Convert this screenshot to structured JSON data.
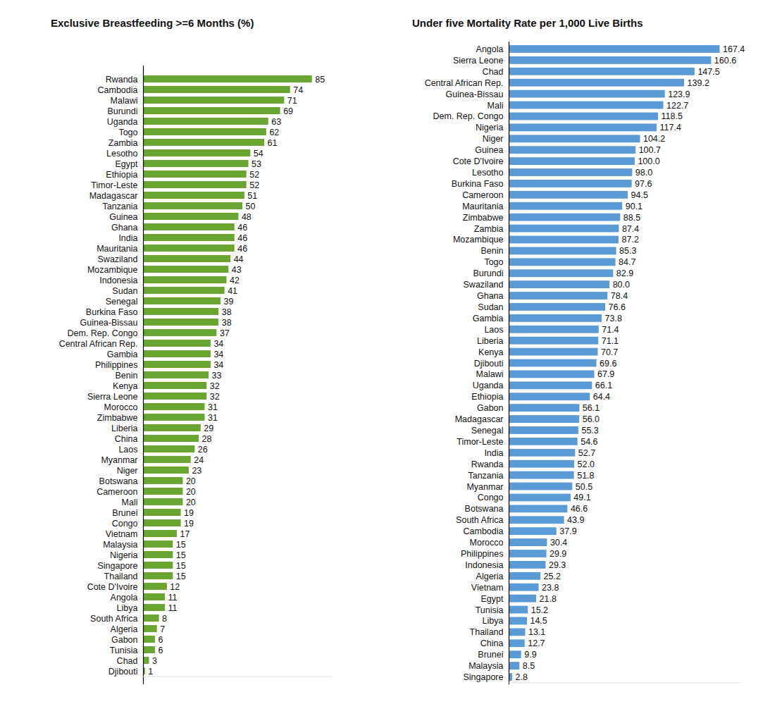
{
  "chart_data": [
    {
      "type": "bar",
      "title": "Exclusive Breastfeeding >=6 Months (%)",
      "orientation": "horizontal",
      "data_labels": true,
      "tick_labels": "y",
      "color": "#6aa531",
      "xlim": [
        0,
        95
      ],
      "categories": [
        "Rwanda",
        "Cambodia",
        "Malawi",
        "Burundi",
        "Uganda",
        "Togo",
        "Zambia",
        "Lesotho",
        "Egypt",
        "Ethiopia",
        "Timor-Leste",
        "Madagascar",
        "Tanzania",
        "Guinea",
        "Ghana",
        "India",
        "Mauritania",
        "Swaziland",
        "Mozambique",
        "Indonesia",
        "Sudan",
        "Senegal",
        "Burkina Faso",
        "Guinea-Bissau",
        "Dem. Rep. Congo",
        "Central African Rep.",
        "Gambia",
        "Philippines",
        "Benin",
        "Kenya",
        "Sierra Leone",
        "Morocco",
        "Zimbabwe",
        "Liberia",
        "China",
        "Laos",
        "Myanmar",
        "Niger",
        "Botswana",
        "Cameroon",
        "Mali",
        "Brunei",
        "Congo",
        "Vietnam",
        "Malaysia",
        "Nigeria",
        "Singapore",
        "Thailand",
        "Cote D'Ivoire",
        "Angola",
        "Libya",
        "South Africa",
        "Algeria",
        "Gabon",
        "Tunisia",
        "Chad",
        "Djibouti"
      ],
      "values": [
        85,
        74,
        71,
        69,
        63,
        62,
        61,
        54,
        53,
        52,
        52,
        51,
        50,
        48,
        46,
        46,
        46,
        44,
        43,
        42,
        41,
        39,
        38,
        38,
        37,
        34,
        34,
        34,
        33,
        32,
        32,
        31,
        31,
        29,
        28,
        26,
        24,
        23,
        20,
        20,
        20,
        19,
        19,
        17,
        15,
        15,
        15,
        15,
        12,
        11,
        11,
        8,
        7,
        6,
        6,
        3,
        1
      ]
    },
    {
      "type": "bar",
      "title": "Under five Mortality Rate per 1,000 Live Births",
      "orientation": "horizontal",
      "data_labels": true,
      "tick_labels": "y",
      "color": "#5b9bd5",
      "xlim": [
        0,
        185
      ],
      "categories": [
        "Angola",
        "Sierra Leone",
        "Chad",
        "Central African Rep.",
        "Guinea-Bissau",
        "Mali",
        "Dem. Rep. Congo",
        "Nigeria",
        "Niger",
        "Guinea",
        "Cote D'Ivoire",
        "Lesotho",
        "Burkina Faso",
        "Cameroon",
        "Mauritania",
        "Zimbabwe",
        "Zambia",
        "Mozambique",
        "Benin",
        "Togo",
        "Burundi",
        "Swaziland",
        "Ghana",
        "Sudan",
        "Gambia",
        "Laos",
        "Liberia",
        "Kenya",
        "Djibouti",
        "Malawi",
        "Uganda",
        "Ethiopia",
        "Gabon",
        "Madagascar",
        "Senegal",
        "Timor-Leste",
        "India",
        "Rwanda",
        "Tanzania",
        "Myanmar",
        "Congo",
        "Botswana",
        "South Africa",
        "Cambodia",
        "Morocco",
        "Philippines",
        "Indonesia",
        "Algeria",
        "Vietnam",
        "Egypt",
        "Tunisia",
        "Libya",
        "Thailand",
        "China",
        "Brunei",
        "Malaysia",
        "Singapore"
      ],
      "values": [
        167.4,
        160.6,
        147.5,
        139.2,
        123.9,
        122.7,
        118.5,
        117.4,
        104.2,
        100.7,
        100.0,
        98.0,
        97.6,
        94.5,
        90.1,
        88.5,
        87.4,
        87.2,
        85.3,
        84.7,
        82.9,
        80.0,
        78.4,
        76.6,
        73.8,
        71.4,
        71.1,
        70.7,
        69.6,
        67.9,
        66.1,
        64.4,
        56.1,
        56.0,
        55.3,
        54.6,
        52.7,
        52.0,
        51.8,
        50.5,
        49.1,
        46.6,
        43.9,
        37.9,
        30.4,
        29.9,
        29.3,
        25.2,
        23.8,
        21.8,
        15.2,
        14.5,
        13.1,
        12.7,
        9.9,
        8.5,
        2.8
      ],
      "value_labels": [
        "167.4",
        "160.6",
        "147.5",
        "139.2",
        "123.9",
        "122.7",
        "118.5",
        "117.4",
        "104.2",
        "100.7",
        "100.0",
        "98.0",
        "97.6",
        "94.5",
        "90.1",
        "88.5",
        "87.4",
        "87.2",
        "85.3",
        "84.7",
        "82.9",
        "80.0",
        "78.4",
        "76.6",
        "73.8",
        "71.4",
        "71.1",
        "70.7",
        "69.6",
        "67.9",
        "66.1",
        "64.4",
        "56.1",
        "56.0",
        "55.3",
        "54.6",
        "52.7",
        "52.0",
        "51.8",
        "50.5",
        "49.1",
        "46.6",
        "43.9",
        "37.9",
        "30.4",
        "29.9",
        "29.3",
        "25.2",
        "23.8",
        "21.8",
        "15.2",
        "14.5",
        "13.1",
        "12.7",
        "9.9",
        "8.5",
        "2.8"
      ]
    }
  ]
}
